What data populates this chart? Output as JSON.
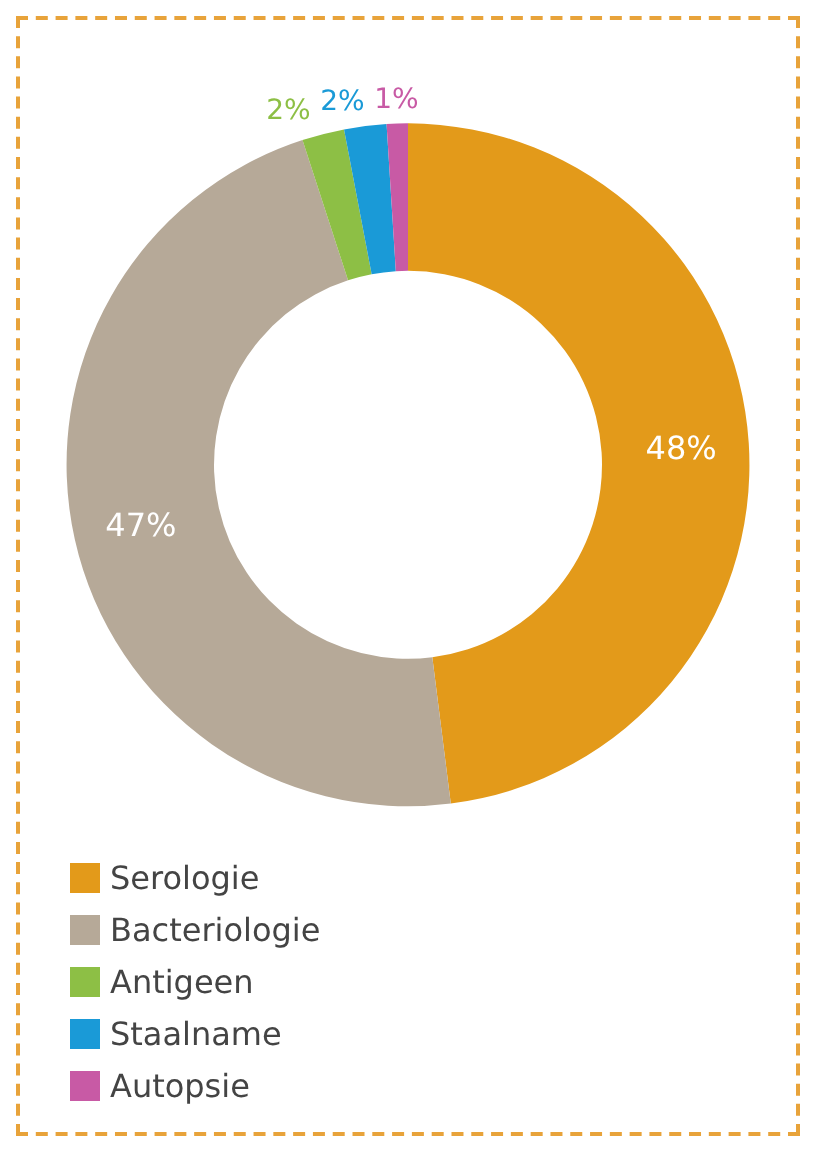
{
  "chart_data": {
    "type": "donut",
    "categories": [
      "Serologie",
      "Bacteriologie",
      "Antigeen",
      "Staalname",
      "Autopsie"
    ],
    "values": [
      48,
      47,
      2,
      2,
      1
    ],
    "value_labels": [
      "48%",
      "47%",
      "2%",
      "2%",
      "1%"
    ],
    "colors": [
      "#e39a1a",
      "#b6a998",
      "#8dbf45",
      "#1a9ad7",
      "#c85aa5"
    ],
    "legend": "bottom left"
  }
}
